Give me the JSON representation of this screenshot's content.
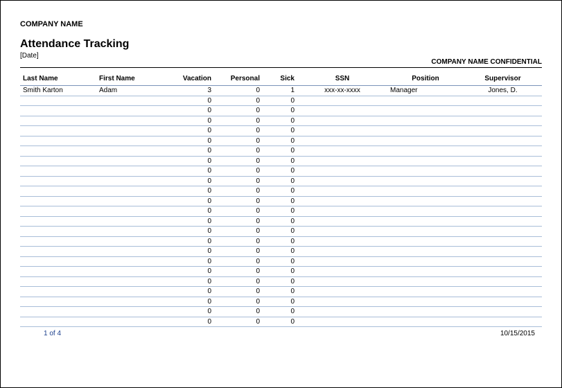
{
  "header": {
    "company_name": "COMPANY NAME",
    "title": "Attendance Tracking",
    "date_placeholder": "[Date]",
    "confidential": "COMPANY NAME CONFIDENTIAL"
  },
  "table": {
    "columns": {
      "last_name": "Last Name",
      "first_name": "First Name",
      "vacation": "Vacation",
      "personal": "Personal",
      "sick": "Sick",
      "ssn": "SSN",
      "position": "Position",
      "supervisor": "Supervisor"
    },
    "rows": [
      {
        "last": "Smith Karton",
        "first": "Adam",
        "vac": "3",
        "pers": "0",
        "sick": "1",
        "ssn": "xxx-xx-xxxx",
        "pos": "Manager",
        "sup": "Jones, D."
      },
      {
        "last": "",
        "first": "",
        "vac": "0",
        "pers": "0",
        "sick": "0",
        "ssn": "",
        "pos": "",
        "sup": ""
      },
      {
        "last": "",
        "first": "",
        "vac": "0",
        "pers": "0",
        "sick": "0",
        "ssn": "",
        "pos": "",
        "sup": ""
      },
      {
        "last": "",
        "first": "",
        "vac": "0",
        "pers": "0",
        "sick": "0",
        "ssn": "",
        "pos": "",
        "sup": ""
      },
      {
        "last": "",
        "first": "",
        "vac": "0",
        "pers": "0",
        "sick": "0",
        "ssn": "",
        "pos": "",
        "sup": ""
      },
      {
        "last": "",
        "first": "",
        "vac": "0",
        "pers": "0",
        "sick": "0",
        "ssn": "",
        "pos": "",
        "sup": ""
      },
      {
        "last": "",
        "first": "",
        "vac": "0",
        "pers": "0",
        "sick": "0",
        "ssn": "",
        "pos": "",
        "sup": ""
      },
      {
        "last": "",
        "first": "",
        "vac": "0",
        "pers": "0",
        "sick": "0",
        "ssn": "",
        "pos": "",
        "sup": ""
      },
      {
        "last": "",
        "first": "",
        "vac": "0",
        "pers": "0",
        "sick": "0",
        "ssn": "",
        "pos": "",
        "sup": ""
      },
      {
        "last": "",
        "first": "",
        "vac": "0",
        "pers": "0",
        "sick": "0",
        "ssn": "",
        "pos": "",
        "sup": ""
      },
      {
        "last": "",
        "first": "",
        "vac": "0",
        "pers": "0",
        "sick": "0",
        "ssn": "",
        "pos": "",
        "sup": ""
      },
      {
        "last": "",
        "first": "",
        "vac": "0",
        "pers": "0",
        "sick": "0",
        "ssn": "",
        "pos": "",
        "sup": ""
      },
      {
        "last": "",
        "first": "",
        "vac": "0",
        "pers": "0",
        "sick": "0",
        "ssn": "",
        "pos": "",
        "sup": ""
      },
      {
        "last": "",
        "first": "",
        "vac": "0",
        "pers": "0",
        "sick": "0",
        "ssn": "",
        "pos": "",
        "sup": ""
      },
      {
        "last": "",
        "first": "",
        "vac": "0",
        "pers": "0",
        "sick": "0",
        "ssn": "",
        "pos": "",
        "sup": ""
      },
      {
        "last": "",
        "first": "",
        "vac": "0",
        "pers": "0",
        "sick": "0",
        "ssn": "",
        "pos": "",
        "sup": ""
      },
      {
        "last": "",
        "first": "",
        "vac": "0",
        "pers": "0",
        "sick": "0",
        "ssn": "",
        "pos": "",
        "sup": ""
      },
      {
        "last": "",
        "first": "",
        "vac": "0",
        "pers": "0",
        "sick": "0",
        "ssn": "",
        "pos": "",
        "sup": ""
      },
      {
        "last": "",
        "first": "",
        "vac": "0",
        "pers": "0",
        "sick": "0",
        "ssn": "",
        "pos": "",
        "sup": ""
      },
      {
        "last": "",
        "first": "",
        "vac": "0",
        "pers": "0",
        "sick": "0",
        "ssn": "",
        "pos": "",
        "sup": ""
      },
      {
        "last": "",
        "first": "",
        "vac": "0",
        "pers": "0",
        "sick": "0",
        "ssn": "",
        "pos": "",
        "sup": ""
      },
      {
        "last": "",
        "first": "",
        "vac": "0",
        "pers": "0",
        "sick": "0",
        "ssn": "",
        "pos": "",
        "sup": ""
      },
      {
        "last": "",
        "first": "",
        "vac": "0",
        "pers": "0",
        "sick": "0",
        "ssn": "",
        "pos": "",
        "sup": ""
      },
      {
        "last": "",
        "first": "",
        "vac": "0",
        "pers": "0",
        "sick": "0",
        "ssn": "",
        "pos": "",
        "sup": ""
      }
    ]
  },
  "footer": {
    "page": "1 of 4",
    "date": "10/15/2015"
  }
}
